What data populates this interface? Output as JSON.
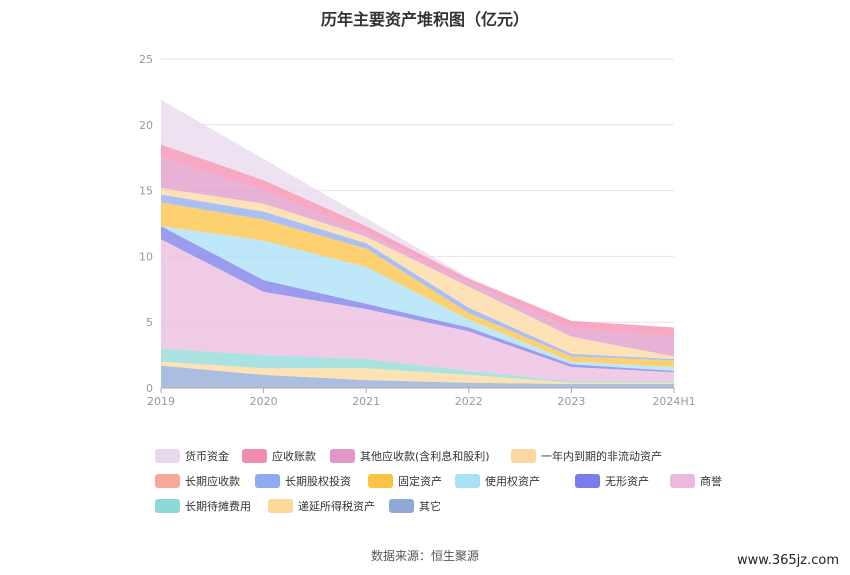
{
  "title": "历年主要资产堆积图（亿元）",
  "source": "数据来源：恒生聚源",
  "watermark": "www.365jz.com",
  "chart_data": {
    "type": "area",
    "stacked": true,
    "categories": [
      "2019",
      "2020",
      "2021",
      "2022",
      "2023",
      "2024H1"
    ],
    "ylim": [
      0,
      25
    ],
    "yticks": [
      0,
      5,
      10,
      15,
      20,
      25
    ],
    "grid": true,
    "legend_position": "bottom",
    "series": [
      {
        "name": "其它",
        "color": "#8fa8d8",
        "values": [
          1.7,
          1.0,
          0.6,
          0.4,
          0.3,
          0.3
        ]
      },
      {
        "name": "递延所得税资产",
        "color": "#fcd89a",
        "values": [
          0.3,
          0.5,
          0.9,
          0.6,
          0.1,
          0.1
        ]
      },
      {
        "name": "长期待摊费用",
        "color": "#8dd8d8",
        "values": [
          1.0,
          1.0,
          0.7,
          0.3,
          0.1,
          0.1
        ]
      },
      {
        "name": "商誉",
        "color": "#eab9dc",
        "values": [
          8.3,
          4.8,
          3.8,
          3.0,
          1.1,
          0.7
        ]
      },
      {
        "name": "无形资产",
        "color": "#7b7bea",
        "values": [
          1.0,
          0.9,
          0.4,
          0.3,
          0.2,
          0.1
        ]
      },
      {
        "name": "使用权资产",
        "color": "#a8e0f8",
        "values": [
          0.0,
          3.0,
          2.8,
          0.6,
          0.2,
          0.3
        ]
      },
      {
        "name": "固定资产",
        "color": "#fcc242",
        "values": [
          1.8,
          1.6,
          1.4,
          0.5,
          0.4,
          0.5
        ]
      },
      {
        "name": "长期股权投资",
        "color": "#8eaaf0",
        "values": [
          0.6,
          0.6,
          0.4,
          0.4,
          0.2,
          0.1
        ]
      },
      {
        "name": "长期应收款",
        "color": "#f8a898",
        "values": [
          0.0,
          0.0,
          0.0,
          0.0,
          0.0,
          0.0
        ]
      },
      {
        "name": "一年内到期的非流动资产",
        "color": "#fcd8a0",
        "values": [
          0.5,
          0.6,
          0.5,
          1.6,
          1.3,
          0.2
        ]
      },
      {
        "name": "其他应收款(含利息和股利)",
        "color": "#e098c8",
        "values": [
          2.3,
          1.0,
          0.3,
          0.3,
          0.6,
          1.5
        ]
      },
      {
        "name": "应收账款",
        "color": "#f48cb0",
        "values": [
          1.0,
          0.8,
          0.5,
          0.3,
          0.6,
          0.7
        ]
      },
      {
        "name": "货币资金",
        "color": "#e8d8ee",
        "values": [
          3.4,
          1.6,
          0.6,
          0.1,
          0.0,
          0.0
        ]
      }
    ]
  }
}
